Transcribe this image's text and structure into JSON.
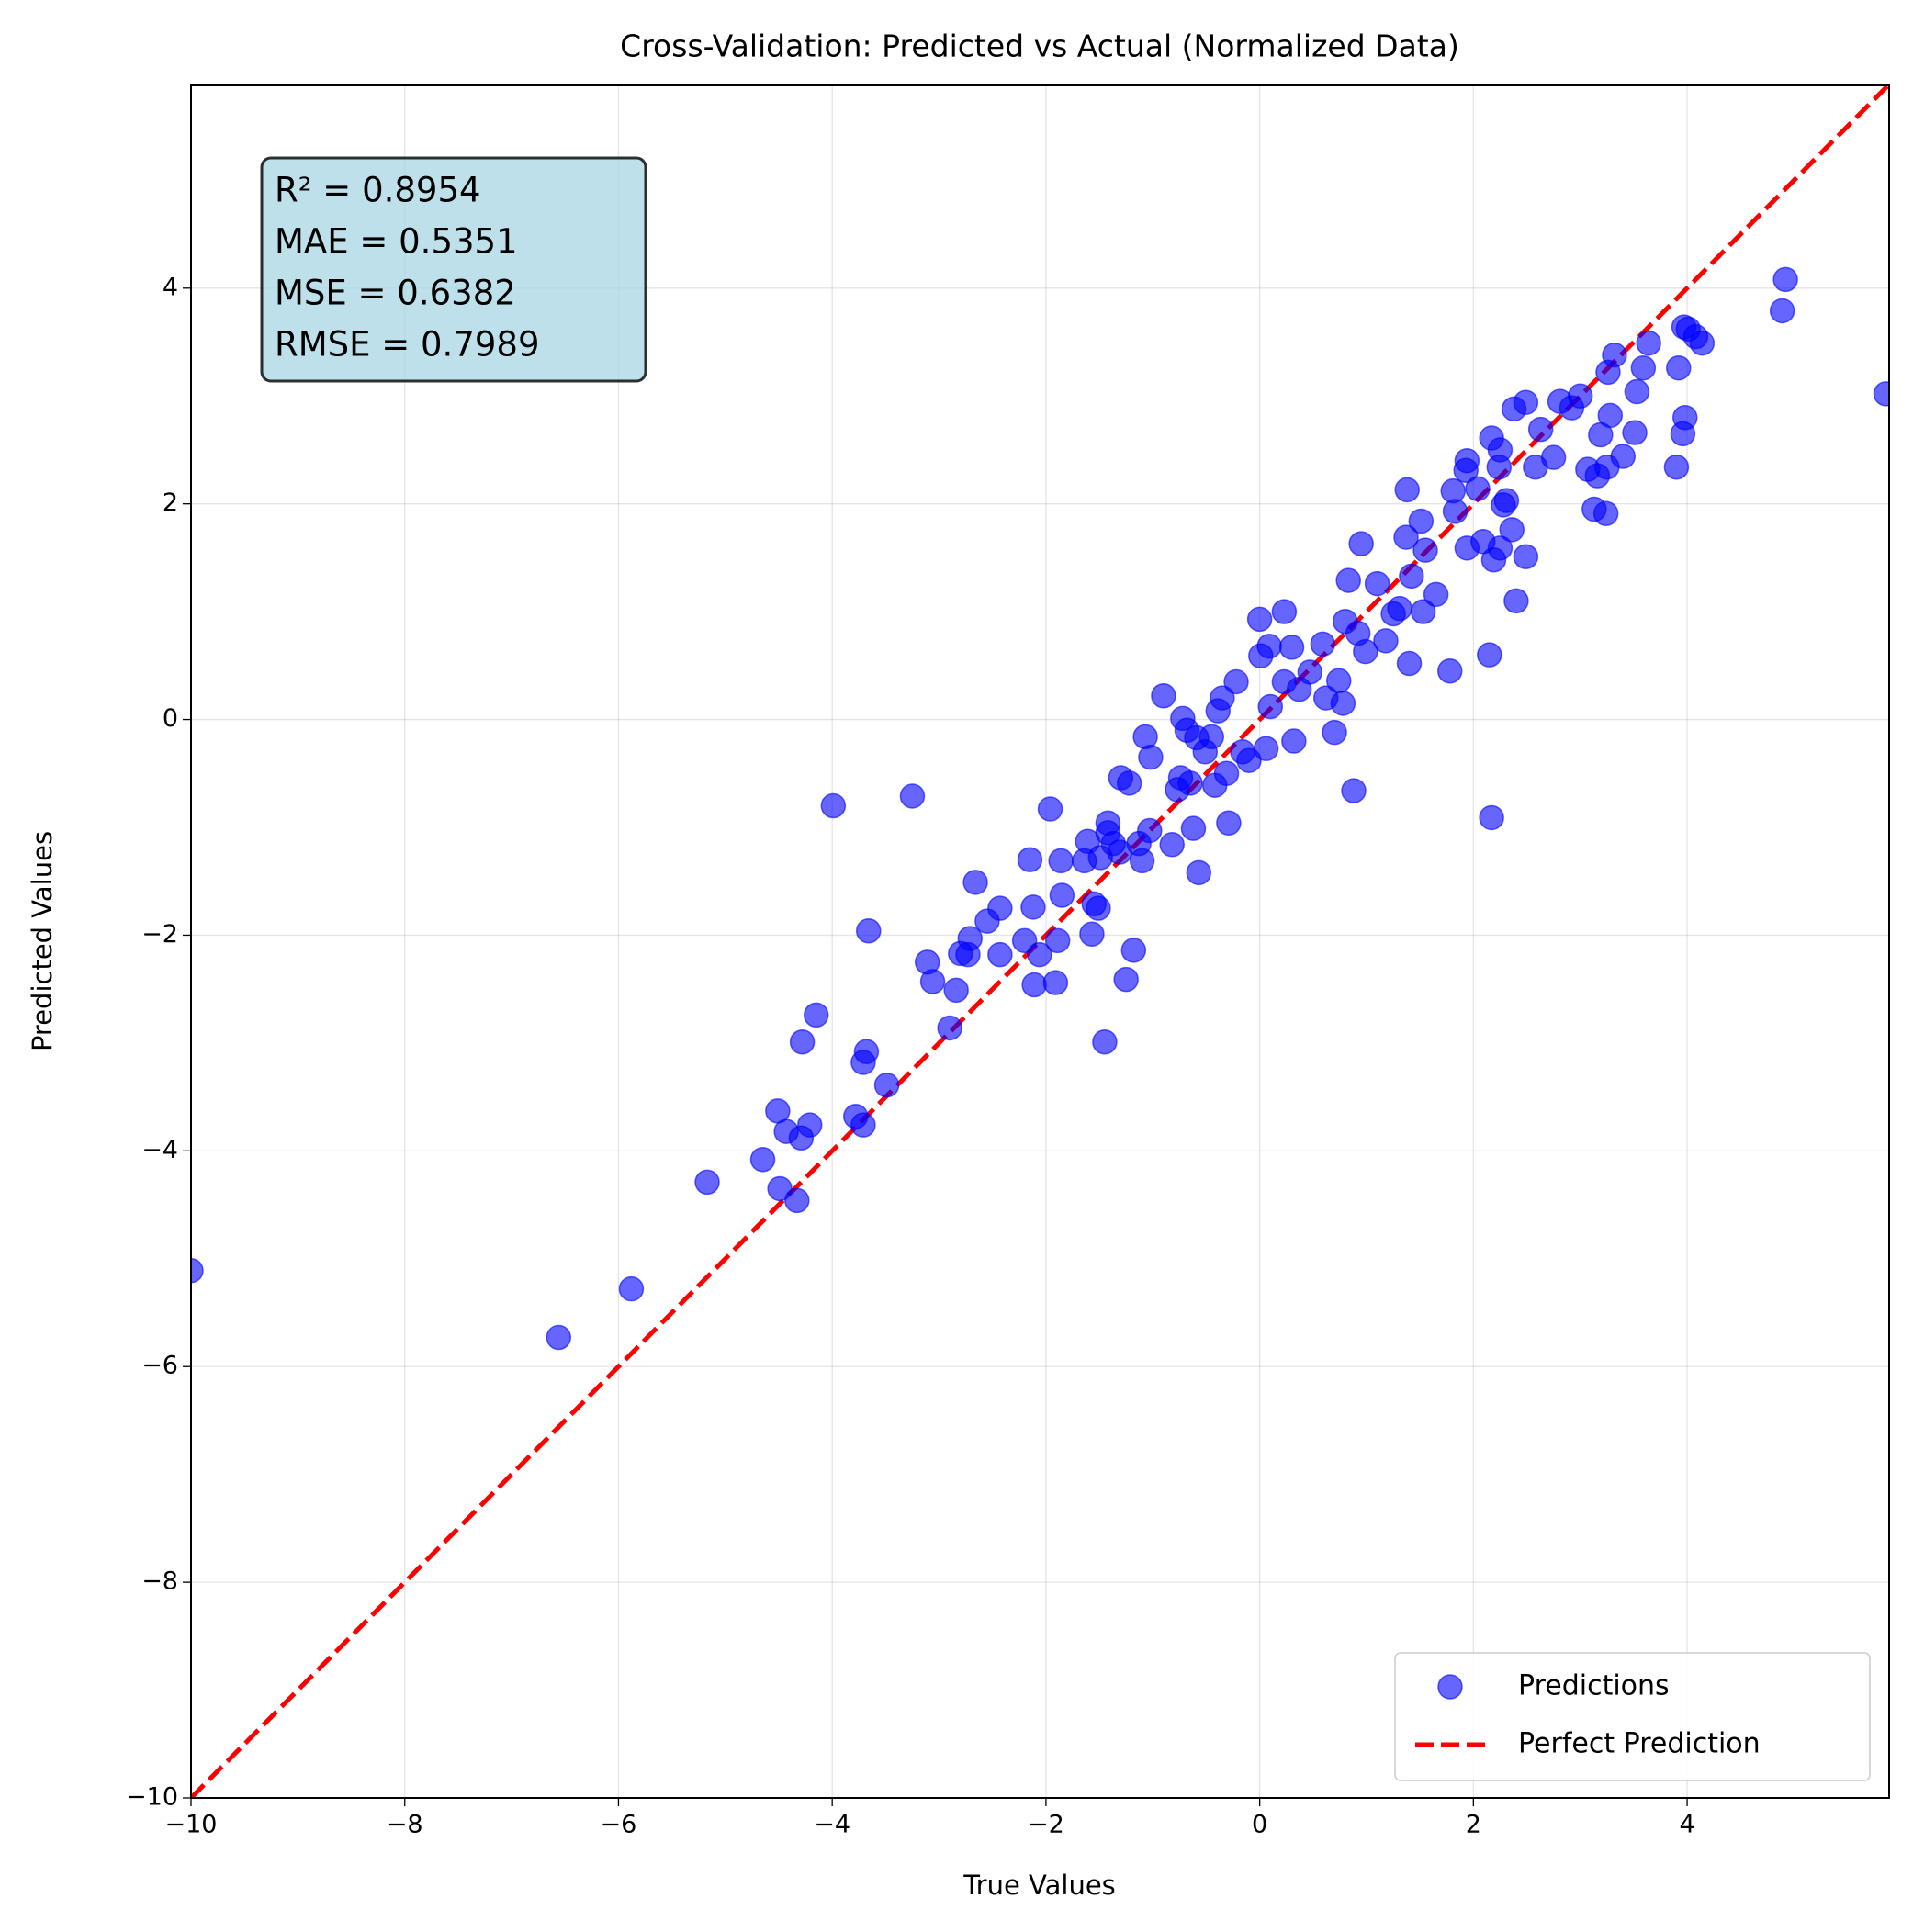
{
  "chart_data": {
    "type": "scatter",
    "title": "Cross-Validation: Predicted vs Actual (Normalized Data)",
    "xlabel": "True Values",
    "ylabel": "Predicted Values",
    "xlim": [
      -10,
      5.89
    ],
    "ylim": [
      -10,
      5.88
    ],
    "xticks": [
      {
        "value": -10,
        "label": "−10"
      },
      {
        "value": -8,
        "label": "−8"
      },
      {
        "value": -6,
        "label": "−6"
      },
      {
        "value": -4,
        "label": "−4"
      },
      {
        "value": -2,
        "label": "−2"
      },
      0,
      2,
      4
    ],
    "yticks": [
      {
        "value": -10,
        "label": "−10"
      },
      {
        "value": -8,
        "label": "−8"
      },
      {
        "value": -6,
        "label": "−6"
      },
      {
        "value": -4,
        "label": "−4"
      },
      {
        "value": -2,
        "label": "−2"
      },
      0,
      2,
      4
    ],
    "grid": true,
    "legend": "lower right",
    "annotation": [
      "R² = 0.8954",
      "MAE = 0.5351",
      "MSE = 0.6382",
      "RMSE = 0.7989"
    ],
    "reference_line": {
      "name": "Perfect Prediction",
      "color": "red"
    },
    "x": [
      -10,
      -6.56,
      -5.88,
      -5.17,
      -4.65,
      -4.51,
      -4.49,
      -4.43,
      -4.33,
      -4.29,
      -4.28,
      -4.21,
      -4.15,
      -3.99,
      -3.78,
      -3.71,
      -3.71,
      -3.68,
      -3.66,
      -3.49,
      -3.25,
      -3.11,
      -3.06,
      -2.9,
      -2.84,
      -2.8,
      -2.73,
      -2.71,
      -2.66,
      -2.55,
      -2.43,
      -2.43,
      -2.2,
      -2.15,
      -2.12,
      -2.11,
      -2.06,
      -1.96,
      -1.91,
      -1.89,
      -1.86,
      -1.85,
      -1.64,
      -1.61,
      -1.57,
      -1.55,
      -1.51,
      -1.49,
      -1.45,
      -1.42,
      -1.42,
      -1.37,
      -1.31,
      -1.3,
      -1.22,
      -1.25,
      -1.18,
      -1.13,
      -1.1,
      -1.07,
      -1.03,
      -1.02,
      -0.9,
      -0.82,
      -0.77,
      -0.74,
      -0.72,
      -0.68,
      -0.65,
      -0.62,
      -0.59,
      -0.57,
      -0.51,
      -0.45,
      -0.42,
      -0.39,
      -0.35,
      -0.31,
      -0.29,
      -0.22,
      -0.16,
      -0.1,
      0,
      0.01,
      0.06,
      0.09,
      0.1,
      0.23,
      0.23,
      0.3,
      0.32,
      0.37,
      0.47,
      0.59,
      0.62,
      0.7,
      0.74,
      0.78,
      0.8,
      0.83,
      0.88,
      0.92,
      0.95,
      0.99,
      1.1,
      1.18,
      1.25,
      1.31,
      1.37,
      1.38,
      1.4,
      1.42,
      1.51,
      1.53,
      1.55,
      1.65,
      1.78,
      1.81,
      1.83,
      1.93,
      1.94,
      1.94,
      2.04,
      2.09,
      2.15,
      2.17,
      2.17,
      2.19,
      2.24,
      2.25,
      2.25,
      2.28,
      2.31,
      2.36,
      2.38,
      2.4,
      2.49,
      2.49,
      2.58,
      2.63,
      2.75,
      2.81,
      2.92,
      3.0,
      3.07,
      3.13,
      3.16,
      3.19,
      3.24,
      3.25,
      3.26,
      3.28,
      3.32,
      3.4,
      3.51,
      3.53,
      3.59,
      3.64,
      3.9,
      3.92,
      3.96,
      3.97,
      3.98,
      4.01,
      4.08,
      4.14,
      4.89,
      4.92,
      5.86
    ],
    "series": [
      {
        "name": "Predictions",
        "color": "blue",
        "values": [
          -5.11,
          -5.73,
          -5.28,
          -4.29,
          -4.08,
          -3.63,
          -4.35,
          -3.82,
          -4.46,
          -3.88,
          -2.99,
          -3.76,
          -2.74,
          -0.8,
          -3.68,
          -3.18,
          -3.76,
          -3.08,
          -1.96,
          -3.39,
          -0.71,
          -2.25,
          -2.43,
          -2.86,
          -2.51,
          -2.17,
          -2.18,
          -2.03,
          -1.51,
          -1.87,
          -2.18,
          -1.75,
          -2.05,
          -1.3,
          -1.74,
          -2.46,
          -2.18,
          -0.83,
          -2.44,
          -2.05,
          -1.31,
          -1.63,
          -1.31,
          -1.13,
          -1.99,
          -1.71,
          -1.75,
          -1.28,
          -2.99,
          -0.96,
          -1.05,
          -1.15,
          -1.23,
          -0.54,
          -0.59,
          -2.41,
          -2.14,
          -1.15,
          -1.31,
          -0.16,
          -1.03,
          -0.35,
          0.22,
          -1.16,
          -0.65,
          -0.54,
          0.01,
          -0.1,
          -0.59,
          -1.01,
          -0.17,
          -1.42,
          -0.3,
          -0.16,
          -0.61,
          0.08,
          0.2,
          -0.5,
          -0.96,
          0.35,
          -0.3,
          -0.38,
          0.93,
          0.59,
          -0.27,
          0.68,
          0.12,
          1.0,
          0.35,
          0.67,
          -0.2,
          0.28,
          0.44,
          0.7,
          0.2,
          -0.12,
          0.36,
          0.15,
          0.91,
          1.29,
          -0.66,
          0.8,
          1.63,
          0.63,
          1.26,
          0.73,
          0.98,
          1.03,
          1.69,
          2.13,
          0.52,
          1.33,
          1.84,
          1.0,
          1.57,
          1.16,
          0.45,
          2.12,
          1.93,
          2.31,
          2.4,
          1.59,
          2.14,
          1.65,
          0.6,
          2.61,
          -0.91,
          1.48,
          2.34,
          2.5,
          1.59,
          1.99,
          2.03,
          1.76,
          2.88,
          1.1,
          2.94,
          1.51,
          2.34,
          2.69,
          2.43,
          2.95,
          2.89,
          3.0,
          2.32,
          1.95,
          2.26,
          2.64,
          1.91,
          2.34,
          3.22,
          2.82,
          3.38,
          2.44,
          2.66,
          3.04,
          3.26,
          3.49,
          2.34,
          3.26,
          2.65,
          3.64,
          2.8,
          3.62,
          3.55,
          3.49,
          3.79,
          4.08,
          3.02
        ]
      }
    ]
  }
}
